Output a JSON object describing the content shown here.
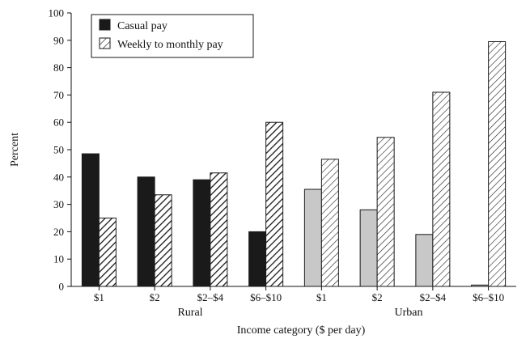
{
  "chart_data": {
    "type": "bar",
    "ylabel": "Percent",
    "xlabel": "Income category ($ per day)",
    "ylim": [
      0,
      100
    ],
    "yticks": [
      0,
      10,
      20,
      30,
      40,
      50,
      60,
      70,
      80,
      90,
      100
    ],
    "grid": false,
    "legend_position": "top-left",
    "categories": [
      "$1",
      "$2",
      "$2–$4",
      "$6–$10",
      "$1",
      "$2",
      "$2–$4",
      "$6–$10"
    ],
    "groups": [
      {
        "label": "Rural",
        "category_indices": [
          0,
          1,
          2,
          3
        ]
      },
      {
        "label": "Urban",
        "category_indices": [
          4,
          5,
          6,
          7
        ]
      }
    ],
    "series": [
      {
        "name": "Casual pay",
        "values": [
          48.5,
          40,
          39,
          20,
          35.5,
          28,
          19,
          0.5
        ]
      },
      {
        "name": "Weekly to monthly pay",
        "values": [
          25,
          33.5,
          41.5,
          60,
          46.5,
          54.5,
          71,
          89.5
        ]
      }
    ],
    "colors": {
      "rural_casual": "#1a1a1a",
      "urban_casual": "#c8c8c8",
      "outline": "#1a1a1a",
      "hatch_line": "#1a1a1a"
    }
  }
}
